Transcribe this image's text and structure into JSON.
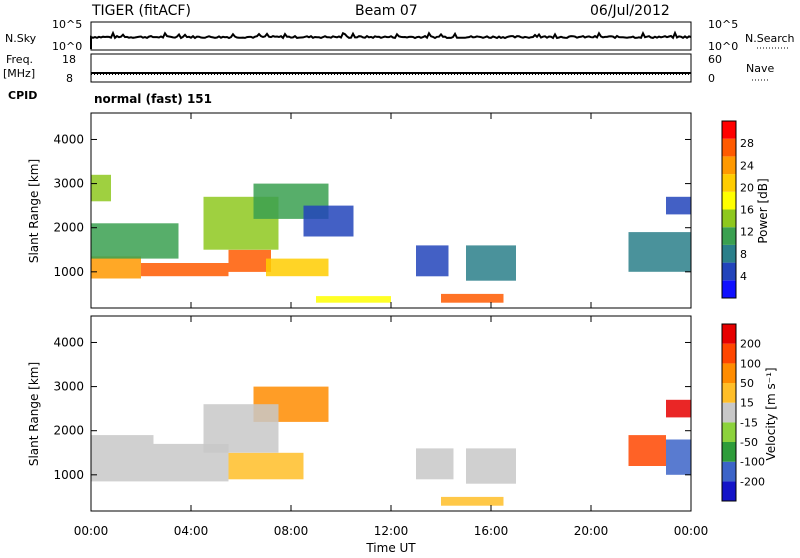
{
  "header": {
    "station": "TIGER (fitACF)",
    "beam": "Beam 07",
    "date": "06/Jul/2012"
  },
  "panels": {
    "nsky_label": "N.Sky",
    "nsearch_label": "N.Search",
    "left_ticks": [
      "10^5",
      "10^0"
    ],
    "right_ticks": [
      "10^5",
      "10^0"
    ],
    "freq_label": "Freq.",
    "freq_unit": "[MHz]",
    "freq_ticks": [
      "18",
      "8"
    ],
    "nave_label": "Nave",
    "nave_ticks": [
      "60",
      "0"
    ],
    "cpid_label": "CPID",
    "cpid_text": "normal (fast) 151"
  },
  "chart_data": [
    {
      "type": "heatmap",
      "name": "power",
      "ylabel": "Slant Range [km]",
      "xlabel": "Time UT",
      "xticks": [
        "00:00",
        "04:00",
        "08:00",
        "12:00",
        "16:00",
        "20:00",
        "00:00"
      ],
      "yticks": [
        "1000",
        "2000",
        "3000",
        "4000"
      ],
      "xlim": [
        0,
        24
      ],
      "ylim": [
        180,
        4600
      ],
      "colorbar": {
        "label": "Power [dB]",
        "ticks": [
          "4",
          "8",
          "12",
          "16",
          "20",
          "24",
          "28"
        ],
        "colors": [
          "#1010ff",
          "#2244bb",
          "#2a7f8a",
          "#3aa050",
          "#8ec81e",
          "#ffff00",
          "#ffcc00",
          "#ff9900",
          "#ff5a00",
          "#ff0000"
        ]
      },
      "blobs": [
        {
          "t0": 0.0,
          "t1": 2.0,
          "r0": 850,
          "r1": 1350,
          "level": 7
        },
        {
          "t0": 2.0,
          "t1": 5.5,
          "r0": 900,
          "r1": 1200,
          "level": 8
        },
        {
          "t0": 5.5,
          "t1": 7.2,
          "r0": 1000,
          "r1": 1500,
          "level": 8
        },
        {
          "t0": 7.0,
          "t1": 9.5,
          "r0": 900,
          "r1": 1300,
          "level": 6
        },
        {
          "t0": 0.0,
          "t1": 3.5,
          "r0": 1300,
          "r1": 2100,
          "level": 3
        },
        {
          "t0": 4.5,
          "t1": 7.5,
          "r0": 1500,
          "r1": 2700,
          "level": 4
        },
        {
          "t0": 6.5,
          "t1": 9.5,
          "r0": 2200,
          "r1": 3000,
          "level": 3
        },
        {
          "t0": 0.0,
          "t1": 0.8,
          "r0": 2600,
          "r1": 3200,
          "level": 4
        },
        {
          "t0": 8.5,
          "t1": 10.5,
          "r0": 1800,
          "r1": 2500,
          "level": 1
        },
        {
          "t0": 13.0,
          "t1": 14.3,
          "r0": 900,
          "r1": 1600,
          "level": 1
        },
        {
          "t0": 15.0,
          "t1": 17.0,
          "r0": 800,
          "r1": 1600,
          "level": 2
        },
        {
          "t0": 14.0,
          "t1": 16.5,
          "r0": 300,
          "r1": 500,
          "level": 8
        },
        {
          "t0": 9.0,
          "t1": 12.0,
          "r0": 300,
          "r1": 450,
          "level": 5
        },
        {
          "t0": 21.5,
          "t1": 24.0,
          "r0": 1000,
          "r1": 1900,
          "level": 2
        },
        {
          "t0": 23.0,
          "t1": 24.0,
          "r0": 2300,
          "r1": 2700,
          "level": 1
        }
      ]
    },
    {
      "type": "heatmap",
      "name": "velocity",
      "ylabel": "Slant Range [km]",
      "xlabel": "Time UT",
      "xticks": [
        "00:00",
        "04:00",
        "08:00",
        "12:00",
        "16:00",
        "20:00",
        "00:00"
      ],
      "yticks": [
        "1000",
        "2000",
        "3000",
        "4000"
      ],
      "xlim": [
        0,
        24
      ],
      "ylim": [
        180,
        4600
      ],
      "colorbar": {
        "label": "Velocity [m s⁻¹]",
        "ticks": [
          "200",
          "100",
          "50",
          "15",
          "-15",
          "-50",
          "-100",
          "-200"
        ],
        "colors": [
          "#1414c8",
          "#3c64c8",
          "#2e9c3a",
          "#8cd23c",
          "#c8c8c8",
          "#ffbe28",
          "#ff8c00",
          "#ff4600",
          "#e60000"
        ]
      },
      "blobs": [
        {
          "t0": 0.0,
          "t1": 2.5,
          "r0": 850,
          "r1": 1900,
          "level": 4
        },
        {
          "t0": 2.5,
          "t1": 5.5,
          "r0": 850,
          "r1": 1700,
          "level": 4
        },
        {
          "t0": 5.5,
          "t1": 8.5,
          "r0": 900,
          "r1": 1500,
          "level": 5
        },
        {
          "t0": 6.5,
          "t1": 9.5,
          "r0": 2200,
          "r1": 3000,
          "level": 6
        },
        {
          "t0": 4.5,
          "t1": 7.5,
          "r0": 1500,
          "r1": 2600,
          "level": 4
        },
        {
          "t0": 13.0,
          "t1": 14.5,
          "r0": 900,
          "r1": 1600,
          "level": 4
        },
        {
          "t0": 15.0,
          "t1": 17.0,
          "r0": 800,
          "r1": 1600,
          "level": 4
        },
        {
          "t0": 14.0,
          "t1": 16.5,
          "r0": 300,
          "r1": 500,
          "level": 5
        },
        {
          "t0": 21.5,
          "t1": 23.0,
          "r0": 1200,
          "r1": 1900,
          "level": 7
        },
        {
          "t0": 23.0,
          "t1": 24.0,
          "r0": 1000,
          "r1": 1800,
          "level": 1
        },
        {
          "t0": 23.0,
          "t1": 24.0,
          "r0": 2300,
          "r1": 2700,
          "level": 8
        }
      ]
    }
  ]
}
